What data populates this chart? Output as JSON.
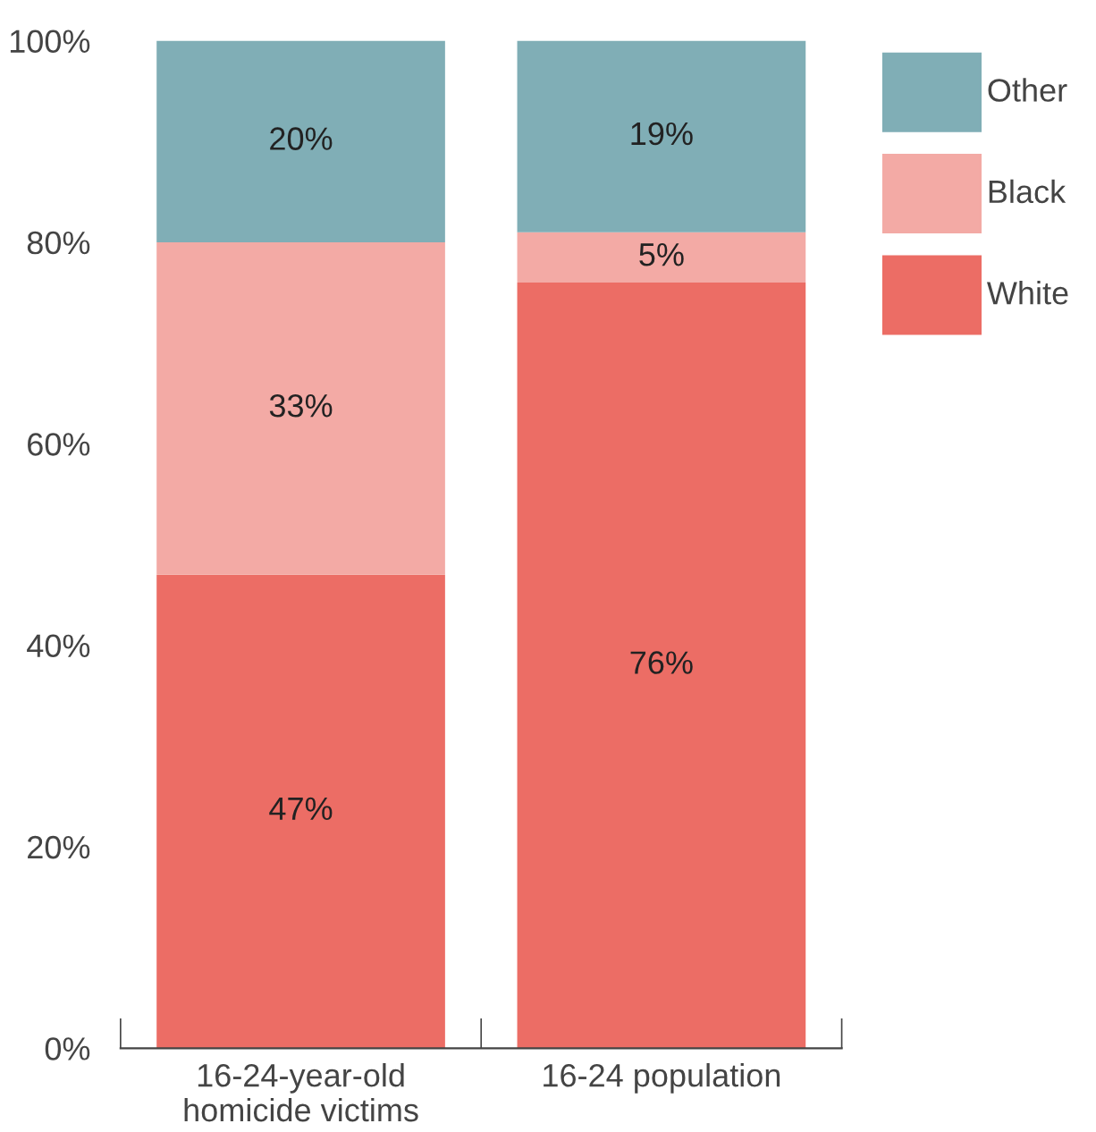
{
  "chart_data": {
    "type": "bar",
    "stacked": true,
    "categories": [
      "16-24-year-old\nhomicide victims",
      "16-24 population"
    ],
    "series": [
      {
        "name": "White",
        "color": "#ec6d65",
        "values": [
          47,
          76
        ],
        "value_labels": [
          "47%",
          "76%"
        ]
      },
      {
        "name": "Black",
        "color": "#f3aaa5",
        "values": [
          33,
          5
        ],
        "value_labels": [
          "33%",
          "5%"
        ]
      },
      {
        "name": "Other",
        "color": "#80aeb6",
        "values": [
          20,
          19
        ],
        "value_labels": [
          "20%",
          "19%"
        ]
      }
    ],
    "ylim": [
      0,
      100
    ],
    "yticks": [
      {
        "value": 0,
        "label": "0%"
      },
      {
        "value": 20,
        "label": "20%"
      },
      {
        "value": 40,
        "label": "40%"
      },
      {
        "value": 60,
        "label": "60%"
      },
      {
        "value": 80,
        "label": "80%"
      },
      {
        "value": 100,
        "label": "100%"
      }
    ],
    "grid": false,
    "legend": "top right"
  }
}
